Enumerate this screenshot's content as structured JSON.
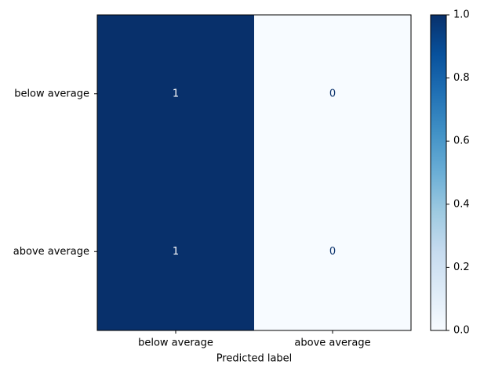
{
  "chart_data": {
    "type": "heatmap",
    "title": "",
    "xlabel": "Predicted label",
    "ylabel": "",
    "x_categories": [
      "below average",
      "above average"
    ],
    "y_categories": [
      "below average",
      "above average"
    ],
    "values": [
      [
        1,
        0
      ],
      [
        1,
        0
      ]
    ],
    "colormap": "Blues",
    "colors": {
      "low": "#f7fbff",
      "high": "#08306b",
      "text_on_dark": "#ffffff",
      "text_on_light": "#08306b",
      "axis": "#000000"
    },
    "colorbar": {
      "range": [
        0,
        1
      ],
      "ticks": [
        "0.0",
        "0.2",
        "0.4",
        "0.6",
        "0.8",
        "1.0"
      ]
    },
    "grid": false,
    "legend": "colorbar-right"
  }
}
